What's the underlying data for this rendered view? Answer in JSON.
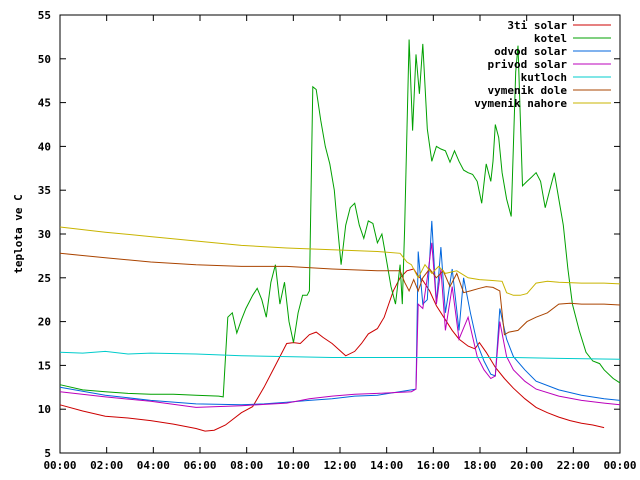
{
  "chart_data": {
    "type": "line",
    "ylabel": "teplota ve C",
    "xlim": [
      0,
      24
    ],
    "ylim": [
      5,
      55
    ],
    "x_ticks": [
      "00:00",
      "02:00",
      "04:00",
      "06:00",
      "08:00",
      "10:00",
      "12:00",
      "14:00",
      "16:00",
      "18:00",
      "20:00",
      "22:00",
      "00:00"
    ],
    "y_ticks": [
      5,
      10,
      15,
      20,
      25,
      30,
      35,
      40,
      45,
      50,
      55
    ],
    "grid": false,
    "legend_position": "top-right",
    "series": [
      {
        "name": "3ti solar",
        "color": "#cc0000",
        "points": [
          [
            0,
            10.5
          ],
          [
            1,
            9.8
          ],
          [
            2,
            9.2
          ],
          [
            3,
            9.0
          ],
          [
            4,
            8.7
          ],
          [
            5,
            8.3
          ],
          [
            6,
            7.8
          ],
          [
            6.4,
            7.5
          ],
          [
            6.8,
            7.6
          ],
          [
            7.3,
            8.2
          ],
          [
            8,
            9.6
          ],
          [
            8.5,
            10.3
          ],
          [
            9,
            12.5
          ],
          [
            9.5,
            15
          ],
          [
            10,
            17.5
          ],
          [
            10.3,
            17.6
          ],
          [
            10.6,
            17.5
          ],
          [
            11,
            18.5
          ],
          [
            11.3,
            18.8
          ],
          [
            11.6,
            18.2
          ],
          [
            12,
            17.5
          ],
          [
            12.3,
            16.8
          ],
          [
            12.6,
            16.1
          ],
          [
            13,
            16.6
          ],
          [
            13.3,
            17.5
          ],
          [
            13.6,
            18.6
          ],
          [
            14,
            19.2
          ],
          [
            14.3,
            20.5
          ],
          [
            14.5,
            22
          ],
          [
            14.7,
            23.5
          ],
          [
            15,
            25
          ],
          [
            15.3,
            25.8
          ],
          [
            15.6,
            26
          ],
          [
            15.8,
            25.2
          ],
          [
            16,
            24.7
          ],
          [
            16.3,
            23.5
          ],
          [
            16.6,
            21.8
          ],
          [
            17,
            20.2
          ],
          [
            17.3,
            19
          ],
          [
            17.6,
            18
          ],
          [
            18,
            17.2
          ],
          [
            18.3,
            16.9
          ],
          [
            18.5,
            17.6
          ],
          [
            18.8,
            16.5
          ],
          [
            19.2,
            14.8
          ],
          [
            19.6,
            13.5
          ],
          [
            20,
            12.4
          ],
          [
            20.5,
            11.2
          ],
          [
            21,
            10.2
          ],
          [
            21.5,
            9.6
          ],
          [
            22,
            9.1
          ],
          [
            22.5,
            8.7
          ],
          [
            23,
            8.4
          ],
          [
            23.5,
            8.2
          ],
          [
            24,
            7.9
          ]
        ]
      },
      {
        "name": "kotel",
        "color": "#00a000",
        "points": [
          [
            0,
            12.8
          ],
          [
            1,
            12.2
          ],
          [
            2,
            12
          ],
          [
            3,
            11.8
          ],
          [
            4,
            11.7
          ],
          [
            5,
            11.7
          ],
          [
            6,
            11.6
          ],
          [
            7,
            11.5
          ],
          [
            7.2,
            11.4
          ],
          [
            7.4,
            20.5
          ],
          [
            7.6,
            21
          ],
          [
            7.8,
            18.7
          ],
          [
            8,
            20.2
          ],
          [
            8.2,
            21.5
          ],
          [
            8.5,
            23
          ],
          [
            8.7,
            23.8
          ],
          [
            8.9,
            22.5
          ],
          [
            9.1,
            20.5
          ],
          [
            9.3,
            24.5
          ],
          [
            9.5,
            26.5
          ],
          [
            9.7,
            22
          ],
          [
            9.9,
            24.5
          ],
          [
            10.1,
            20
          ],
          [
            10.3,
            17.6
          ],
          [
            10.5,
            21
          ],
          [
            10.7,
            23
          ],
          [
            10.9,
            23
          ],
          [
            11,
            23.5
          ],
          [
            11.15,
            46.8
          ],
          [
            11.3,
            46.5
          ],
          [
            11.5,
            43
          ],
          [
            11.7,
            40
          ],
          [
            11.9,
            38
          ],
          [
            12.1,
            35
          ],
          [
            12.2,
            32
          ],
          [
            12.4,
            26.5
          ],
          [
            12.6,
            31
          ],
          [
            12.8,
            33
          ],
          [
            13,
            33.5
          ],
          [
            13.2,
            31
          ],
          [
            13.4,
            29.5
          ],
          [
            13.6,
            31.5
          ],
          [
            13.8,
            31.2
          ],
          [
            14,
            29
          ],
          [
            14.2,
            30
          ],
          [
            14.4,
            27
          ],
          [
            14.6,
            24
          ],
          [
            14.8,
            22
          ],
          [
            15,
            26.5
          ],
          [
            15.1,
            22
          ],
          [
            15.2,
            30.5
          ],
          [
            15.4,
            52.2
          ],
          [
            15.55,
            41.8
          ],
          [
            15.7,
            50.5
          ],
          [
            15.85,
            46
          ],
          [
            16,
            51.7
          ],
          [
            16.2,
            42
          ],
          [
            16.4,
            38.3
          ],
          [
            16.6,
            40
          ],
          [
            16.8,
            39.7
          ],
          [
            17,
            39.5
          ],
          [
            17.2,
            38.2
          ],
          [
            17.4,
            39.5
          ],
          [
            17.6,
            38.3
          ],
          [
            17.8,
            37.3
          ],
          [
            18,
            37
          ],
          [
            18.2,
            36.8
          ],
          [
            18.4,
            36
          ],
          [
            18.6,
            33.5
          ],
          [
            18.8,
            38
          ],
          [
            19,
            36
          ],
          [
            19.1,
            38.3
          ],
          [
            19.2,
            42.5
          ],
          [
            19.35,
            41
          ],
          [
            19.5,
            37
          ],
          [
            19.7,
            34
          ],
          [
            19.9,
            32
          ],
          [
            20.1,
            48.5
          ],
          [
            20.2,
            51.5
          ],
          [
            20.4,
            35.5
          ],
          [
            20.6,
            36
          ],
          [
            20.8,
            36.5
          ],
          [
            21,
            37
          ],
          [
            21.2,
            36
          ],
          [
            21.4,
            33
          ],
          [
            21.6,
            35
          ],
          [
            21.8,
            37
          ],
          [
            22,
            34
          ],
          [
            22.2,
            31
          ],
          [
            22.4,
            26
          ],
          [
            22.6,
            22
          ],
          [
            22.9,
            19
          ],
          [
            23.2,
            16.5
          ],
          [
            23.5,
            15.5
          ],
          [
            23.8,
            15.2
          ],
          [
            24,
            14.5
          ],
          [
            24.4,
            13.5
          ],
          [
            24.7,
            13
          ]
        ]
      },
      {
        "name": "odvod solar",
        "color": "#0066dd",
        "points": [
          [
            0,
            12.5
          ],
          [
            2,
            11.6
          ],
          [
            4,
            11
          ],
          [
            6,
            10.6
          ],
          [
            8,
            10.5
          ],
          [
            9,
            10.6
          ],
          [
            10,
            10.8
          ],
          [
            11,
            11
          ],
          [
            12,
            11.2
          ],
          [
            13,
            11.5
          ],
          [
            14,
            11.6
          ],
          [
            15.5,
            12.2
          ],
          [
            15.7,
            12.3
          ],
          [
            15.8,
            28
          ],
          [
            16,
            22
          ],
          [
            16.2,
            22.5
          ],
          [
            16.4,
            31.5
          ],
          [
            16.6,
            22
          ],
          [
            16.8,
            28.5
          ],
          [
            17,
            21
          ],
          [
            17.3,
            26
          ],
          [
            17.6,
            19
          ],
          [
            17.8,
            25
          ],
          [
            18.1,
            21
          ],
          [
            18.4,
            17.5
          ],
          [
            18.7,
            15.5
          ],
          [
            19,
            14
          ],
          [
            19.2,
            13.8
          ],
          [
            19.4,
            21.5
          ],
          [
            19.7,
            18
          ],
          [
            20,
            16
          ],
          [
            20.5,
            14.5
          ],
          [
            21,
            13.2
          ],
          [
            22,
            12.2
          ],
          [
            23,
            11.6
          ],
          [
            24,
            11.2
          ],
          [
            24.7,
            11
          ]
        ]
      },
      {
        "name": "privod solar",
        "color": "#bb00bb",
        "points": [
          [
            0,
            12
          ],
          [
            2,
            11.4
          ],
          [
            4,
            10.9
          ],
          [
            6,
            10.2
          ],
          [
            8,
            10.4
          ],
          [
            10,
            10.7
          ],
          [
            11,
            11.2
          ],
          [
            12,
            11.5
          ],
          [
            13,
            11.7
          ],
          [
            14,
            11.8
          ],
          [
            15.5,
            12
          ],
          [
            15.7,
            12.3
          ],
          [
            15.8,
            22
          ],
          [
            16,
            21.5
          ],
          [
            16.2,
            25
          ],
          [
            16.4,
            29
          ],
          [
            16.6,
            22
          ],
          [
            16.8,
            26
          ],
          [
            17,
            19
          ],
          [
            17.3,
            24
          ],
          [
            17.6,
            18
          ],
          [
            18,
            20.5
          ],
          [
            18.4,
            16
          ],
          [
            18.7,
            14.5
          ],
          [
            19,
            13.5
          ],
          [
            19.2,
            13.8
          ],
          [
            19.4,
            20
          ],
          [
            19.7,
            16
          ],
          [
            20,
            14.5
          ],
          [
            20.5,
            13.2
          ],
          [
            21,
            12.3
          ],
          [
            22,
            11.5
          ],
          [
            23,
            11
          ],
          [
            24,
            10.7
          ],
          [
            24.7,
            10.5
          ]
        ]
      },
      {
        "name": "kutloch",
        "color": "#00cccc",
        "points": [
          [
            0,
            16.5
          ],
          [
            1,
            16.4
          ],
          [
            2,
            16.6
          ],
          [
            3,
            16.3
          ],
          [
            4,
            16.4
          ],
          [
            6,
            16.3
          ],
          [
            8,
            16.1
          ],
          [
            10,
            16
          ],
          [
            12,
            15.9
          ],
          [
            14,
            15.9
          ],
          [
            16,
            15.9
          ],
          [
            18,
            15.9
          ],
          [
            20,
            15.9
          ],
          [
            22,
            15.8
          ],
          [
            24.7,
            15.7
          ]
        ]
      },
      {
        "name": "vymenik dole",
        "color": "#aa4400",
        "points": [
          [
            0,
            27.8
          ],
          [
            2,
            27.3
          ],
          [
            4,
            26.8
          ],
          [
            6,
            26.5
          ],
          [
            8,
            26.3
          ],
          [
            10,
            26.3
          ],
          [
            12,
            26.0
          ],
          [
            14,
            25.8
          ],
          [
            15,
            25.8
          ],
          [
            15.2,
            24.5
          ],
          [
            15.4,
            23.5
          ],
          [
            15.6,
            24.8
          ],
          [
            15.8,
            23.5
          ],
          [
            16,
            25
          ],
          [
            16.3,
            26
          ],
          [
            16.6,
            25
          ],
          [
            16.9,
            25.8
          ],
          [
            17.2,
            24
          ],
          [
            17.5,
            25.5
          ],
          [
            17.8,
            23.3
          ],
          [
            18.1,
            23.5
          ],
          [
            18.5,
            23.8
          ],
          [
            18.8,
            24
          ],
          [
            19.1,
            23.9
          ],
          [
            19.4,
            23.5
          ],
          [
            19.6,
            18.5
          ],
          [
            19.8,
            18.8
          ],
          [
            20.2,
            19
          ],
          [
            20.6,
            20
          ],
          [
            21,
            20.5
          ],
          [
            21.5,
            21
          ],
          [
            22,
            22
          ],
          [
            22.5,
            22.1
          ],
          [
            23,
            22.0
          ],
          [
            24,
            22.0
          ],
          [
            24.7,
            21.9
          ]
        ]
      },
      {
        "name": "vymenik nahore",
        "color": "#c8b400",
        "points": [
          [
            0,
            30.8
          ],
          [
            2,
            30.2
          ],
          [
            4,
            29.7
          ],
          [
            6,
            29.2
          ],
          [
            8,
            28.7
          ],
          [
            10,
            28.4
          ],
          [
            12,
            28.2
          ],
          [
            14,
            28
          ],
          [
            15,
            27.8
          ],
          [
            15.3,
            26.8
          ],
          [
            15.5,
            26.5
          ],
          [
            15.8,
            25
          ],
          [
            16.1,
            26.5
          ],
          [
            16.4,
            25.5
          ],
          [
            16.7,
            26.3
          ],
          [
            17,
            25.5
          ],
          [
            17.5,
            25.8
          ],
          [
            18,
            25
          ],
          [
            18.5,
            24.8
          ],
          [
            19,
            24.7
          ],
          [
            19.5,
            24.6
          ],
          [
            19.7,
            23.3
          ],
          [
            20,
            23
          ],
          [
            20.3,
            23
          ],
          [
            20.6,
            23.2
          ],
          [
            21,
            24.4
          ],
          [
            21.5,
            24.6
          ],
          [
            22,
            24.5
          ],
          [
            23,
            24.4
          ],
          [
            24,
            24.4
          ],
          [
            24.7,
            24.3
          ]
        ]
      }
    ]
  }
}
